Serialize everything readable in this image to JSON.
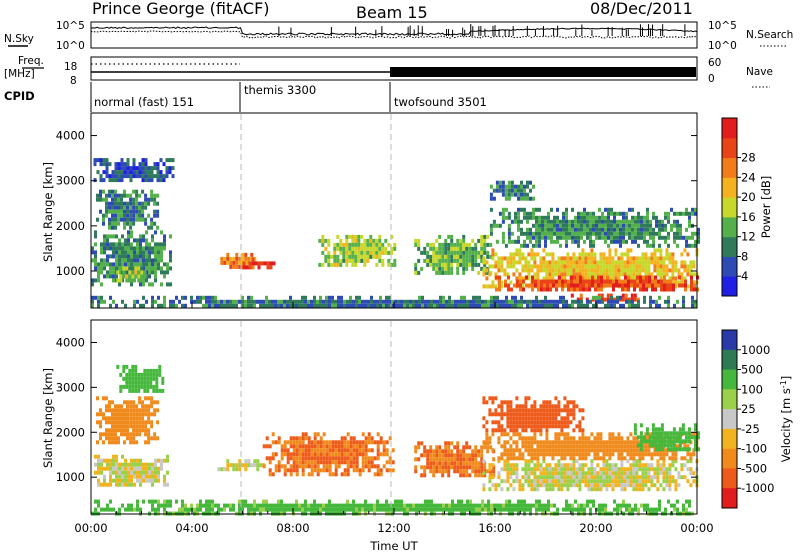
{
  "header": {
    "title": "Prince George (fitACF)",
    "beam": "Beam 15",
    "date": "08/Dec/2011"
  },
  "top_panels": {
    "nsky_label": "N.Sky",
    "nsky_ticks": [
      "10^5",
      "10^0"
    ],
    "nsearch_label": "N.Search",
    "nsearch_ticks": [
      "10^5",
      "10^0"
    ],
    "freq_label": "Freq.",
    "freq_unit": "[MHz]",
    "freq_ticks": [
      "18",
      "8"
    ],
    "nave_label": "Nave",
    "nave_ticks": [
      "60",
      "0"
    ],
    "cpid_label": "CPID",
    "cpid_segments": [
      {
        "label": "normal (fast) 151",
        "start_h": 0,
        "end_h": 6
      },
      {
        "label": "themis 3300",
        "start_h": 6,
        "end_h": 12
      },
      {
        "label": "twofsound 3501",
        "start_h": 12,
        "end_h": 24
      }
    ]
  },
  "power_colorbar": {
    "label": "Power [dB]",
    "ticks": [
      "4",
      "8",
      "12",
      "16",
      "20",
      "24",
      "28"
    ],
    "colors": [
      "#1f1fe6",
      "#2e4bb5",
      "#2f7a5a",
      "#54b04a",
      "#c8d82a",
      "#f5b21f",
      "#f27c1a",
      "#e84418",
      "#e21d1d"
    ]
  },
  "velocity_colorbar": {
    "label": "Velocity [m s",
    "label_sup": "-1",
    "label_end": "]",
    "ticks": [
      "1000",
      "500",
      "100",
      "25",
      "-25",
      "-100",
      "-500",
      "-1000"
    ],
    "colors": [
      "#2a3aa8",
      "#2d7a55",
      "#45b83c",
      "#9ad04a",
      "#c8c8c8",
      "#f2b41e",
      "#f08a1c",
      "#ee5a19",
      "#e21d1d"
    ]
  },
  "x_axis": {
    "label": "Time UT",
    "ticks": [
      "00:00",
      "04:00",
      "08:00",
      "12:00",
      "16:00",
      "20:00",
      "00:00"
    ]
  },
  "chart_data": [
    {
      "type": "heatmap",
      "title": "Power",
      "ylabel": "Slant Range [km]",
      "xlabel": "Time UT",
      "xlim": [
        0,
        24
      ],
      "ylim": [
        180,
        4500
      ],
      "yticks": [
        1000,
        2000,
        3000,
        4000
      ],
      "colorbar": "Power [dB]",
      "blobs": [
        {
          "t0": 0.0,
          "t1": 3.2,
          "r0": 700,
          "r1": 1900,
          "v": 10
        },
        {
          "t0": 1.0,
          "t1": 2.3,
          "r0": 800,
          "r1": 1100,
          "v": 14
        },
        {
          "t0": 0.2,
          "t1": 2.6,
          "r0": 2000,
          "r1": 2800,
          "v": 9
        },
        {
          "t0": 0.1,
          "t1": 3.3,
          "r0": 3000,
          "r1": 3500,
          "v": 6
        },
        {
          "t0": 5.0,
          "t1": 6.5,
          "r0": 1100,
          "r1": 1400,
          "v": 22
        },
        {
          "t0": 6.0,
          "t1": 7.2,
          "r0": 1100,
          "r1": 1300,
          "v": 26
        },
        {
          "t0": 9.0,
          "t1": 12.0,
          "r0": 1100,
          "r1": 1800,
          "v": 14
        },
        {
          "t0": 12.8,
          "t1": 15.8,
          "r0": 1000,
          "r1": 1800,
          "v": 12
        },
        {
          "t0": 15.5,
          "t1": 24.0,
          "r0": 700,
          "r1": 1500,
          "v": 18
        },
        {
          "t0": 16.0,
          "t1": 24.0,
          "r0": 600,
          "r1": 900,
          "v": 26
        },
        {
          "t0": 19.0,
          "t1": 22.0,
          "r0": 380,
          "r1": 500,
          "v": 28
        },
        {
          "t0": 15.8,
          "t1": 24.0,
          "r0": 1600,
          "r1": 2400,
          "v": 10
        },
        {
          "t0": 15.8,
          "t1": 17.5,
          "r0": 2600,
          "r1": 3000,
          "v": 9
        },
        {
          "t0": 0.0,
          "t1": 24.0,
          "r0": 200,
          "r1": 450,
          "v": 8
        }
      ]
    },
    {
      "type": "heatmap",
      "title": "Velocity",
      "ylabel": "Slant Range [km]",
      "xlabel": "Time UT",
      "xlim": [
        0,
        24
      ],
      "ylim": [
        180,
        4500
      ],
      "yticks": [
        1000,
        2000,
        3000,
        4000
      ],
      "colorbar": "Velocity [m s-1]",
      "blobs": [
        {
          "t0": 0.0,
          "t1": 3.2,
          "r0": 800,
          "r1": 1500,
          "v": 0
        },
        {
          "t0": 0.2,
          "t1": 2.6,
          "r0": 1800,
          "r1": 2800,
          "v": -150
        },
        {
          "t0": 1.0,
          "t1": 2.8,
          "r0": 2900,
          "r1": 3500,
          "v": 120
        },
        {
          "t0": 5.0,
          "t1": 6.8,
          "r0": 1200,
          "r1": 1400,
          "v": 0
        },
        {
          "t0": 6.8,
          "t1": 12.0,
          "r0": 1100,
          "r1": 2000,
          "v": -300
        },
        {
          "t0": 12.8,
          "t1": 16.0,
          "r0": 1000,
          "r1": 1800,
          "v": -300
        },
        {
          "t0": 15.5,
          "t1": 24.0,
          "r0": 700,
          "r1": 1400,
          "v": 0
        },
        {
          "t0": 15.5,
          "t1": 24.0,
          "r0": 1400,
          "r1": 2000,
          "v": -150
        },
        {
          "t0": 15.5,
          "t1": 19.5,
          "r0": 2000,
          "r1": 2800,
          "v": -500
        },
        {
          "t0": 21.5,
          "t1": 24.0,
          "r0": 1600,
          "r1": 2200,
          "v": 150
        },
        {
          "t0": 0.0,
          "t1": 24.0,
          "r0": 200,
          "r1": 500,
          "v": 100
        }
      ]
    }
  ]
}
